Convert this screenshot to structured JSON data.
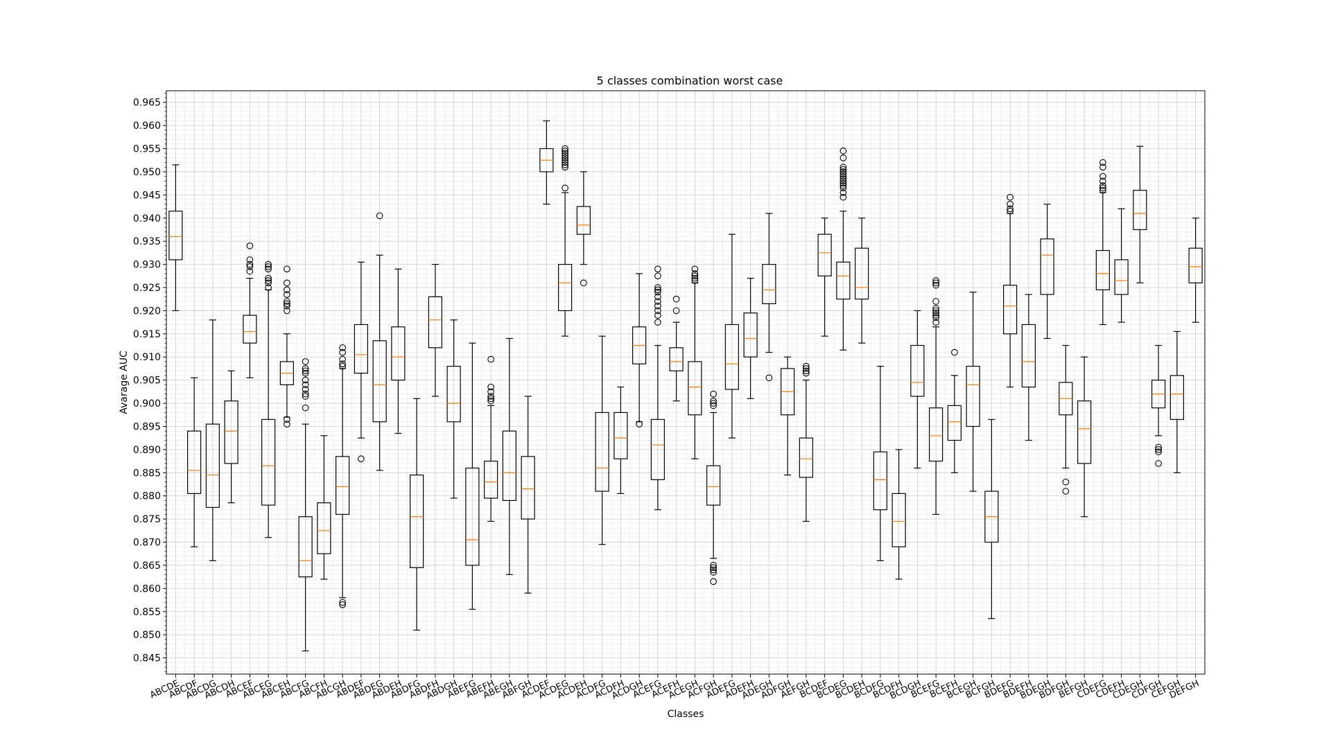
{
  "chart_data": {
    "type": "boxplot",
    "title": "5 classes combination worst case",
    "xlabel": "Classes",
    "ylabel": "Avarage AUC",
    "ylim": [
      0.8415,
      0.9675
    ],
    "yticks": [
      0.845,
      0.85,
      0.855,
      0.86,
      0.865,
      0.87,
      0.875,
      0.88,
      0.885,
      0.89,
      0.895,
      0.9,
      0.905,
      0.91,
      0.915,
      0.92,
      0.925,
      0.93,
      0.935,
      0.94,
      0.945,
      0.95,
      0.955,
      0.96,
      0.965
    ],
    "ytick_labels": [
      "0.845",
      "0.850",
      "0.855",
      "0.860",
      "0.865",
      "0.870",
      "0.875",
      "0.880",
      "0.885",
      "0.890",
      "0.895",
      "0.900",
      "0.905",
      "0.910",
      "0.915",
      "0.920",
      "0.925",
      "0.930",
      "0.935",
      "0.940",
      "0.945",
      "0.950",
      "0.955",
      "0.960",
      "0.965"
    ],
    "grid": true,
    "minor_grid": true,
    "box_color": "#000000",
    "median_color": "#ff7f0e",
    "categories": [
      "ABCDE",
      "ABCDF",
      "ABCDG",
      "ABCDH",
      "ABCEF",
      "ABCEG",
      "ABCEH",
      "ABCFG",
      "ABCFH",
      "ABCGH",
      "ABDEF",
      "ABDEG",
      "ABDEH",
      "ABDFG",
      "ABDFH",
      "ABDGH",
      "ABEFG",
      "ABEFH",
      "ABEGH",
      "ABFGH",
      "ACDEF",
      "ACDEG",
      "ACDEH",
      "ACDFG",
      "ACDFH",
      "ACDGH",
      "ACEFG",
      "ACEFH",
      "ACEGH",
      "ACFGH",
      "ADEFG",
      "ADEFH",
      "ADEGH",
      "ADFGH",
      "AEFGH",
      "BCDEF",
      "BCDEG",
      "BCDEH",
      "BCDFG",
      "BCDFH",
      "BCDGH",
      "BCEFG",
      "BCEFH",
      "BCEGH",
      "BCFGH",
      "BDEFG",
      "BDEFH",
      "BDEGH",
      "BDFGH",
      "BEFGH",
      "CDEFG",
      "CDEFH",
      "CDEGH",
      "CDFGH",
      "CEFGH",
      "DEFGH"
    ],
    "boxes": [
      {
        "wl": 0.92,
        "q1": 0.931,
        "med": 0.936,
        "q3": 0.9415,
        "wh": 0.9515,
        "fliers": []
      },
      {
        "wl": 0.869,
        "q1": 0.8805,
        "med": 0.8855,
        "q3": 0.894,
        "wh": 0.9055,
        "fliers": []
      },
      {
        "wl": 0.866,
        "q1": 0.8775,
        "med": 0.8845,
        "q3": 0.8955,
        "wh": 0.918,
        "fliers": []
      },
      {
        "wl": 0.8785,
        "q1": 0.887,
        "med": 0.894,
        "q3": 0.9005,
        "wh": 0.907,
        "fliers": []
      },
      {
        "wl": 0.9055,
        "q1": 0.913,
        "med": 0.9155,
        "q3": 0.919,
        "wh": 0.927,
        "fliers": [
          0.9285,
          0.9295,
          0.93,
          0.931,
          0.934
        ]
      },
      {
        "wl": 0.871,
        "q1": 0.878,
        "med": 0.8865,
        "q3": 0.8965,
        "wh": 0.9245,
        "fliers": [
          0.925,
          0.926,
          0.9265,
          0.927,
          0.929,
          0.9295,
          0.93
        ]
      },
      {
        "wl": 0.897,
        "q1": 0.904,
        "med": 0.9065,
        "q3": 0.909,
        "wh": 0.915,
        "fliers": [
          0.8955,
          0.8965,
          0.92,
          0.921,
          0.9215,
          0.922,
          0.9235,
          0.9245,
          0.926,
          0.929
        ]
      },
      {
        "wl": 0.8465,
        "q1": 0.8625,
        "med": 0.866,
        "q3": 0.8755,
        "wh": 0.8955,
        "fliers": [
          0.899,
          0.9015,
          0.902,
          0.903,
          0.904,
          0.905,
          0.9065,
          0.907,
          0.9075,
          0.909
        ]
      },
      {
        "wl": 0.862,
        "q1": 0.8675,
        "med": 0.8725,
        "q3": 0.8785,
        "wh": 0.893,
        "fliers": []
      },
      {
        "wl": 0.858,
        "q1": 0.876,
        "med": 0.882,
        "q3": 0.8885,
        "wh": 0.9075,
        "fliers": [
          0.8565,
          0.857,
          0.908,
          0.9085,
          0.9095,
          0.911,
          0.912
        ]
      },
      {
        "wl": 0.8925,
        "q1": 0.9065,
        "med": 0.9105,
        "q3": 0.917,
        "wh": 0.9305,
        "fliers": [
          0.888
        ]
      },
      {
        "wl": 0.8855,
        "q1": 0.896,
        "med": 0.904,
        "q3": 0.9135,
        "wh": 0.932,
        "fliers": [
          0.9405
        ]
      },
      {
        "wl": 0.8935,
        "q1": 0.905,
        "med": 0.91,
        "q3": 0.9165,
        "wh": 0.929,
        "fliers": []
      },
      {
        "wl": 0.851,
        "q1": 0.8645,
        "med": 0.8755,
        "q3": 0.8845,
        "wh": 0.901,
        "fliers": []
      },
      {
        "wl": 0.9015,
        "q1": 0.912,
        "med": 0.918,
        "q3": 0.923,
        "wh": 0.93,
        "fliers": []
      },
      {
        "wl": 0.8795,
        "q1": 0.896,
        "med": 0.9,
        "q3": 0.908,
        "wh": 0.918,
        "fliers": []
      },
      {
        "wl": 0.8555,
        "q1": 0.865,
        "med": 0.8705,
        "q3": 0.886,
        "wh": 0.913,
        "fliers": []
      },
      {
        "wl": 0.8745,
        "q1": 0.8795,
        "med": 0.883,
        "q3": 0.8875,
        "wh": 0.8995,
        "fliers": [
          0.9005,
          0.901,
          0.9015,
          0.9025,
          0.9035,
          0.9095
        ]
      },
      {
        "wl": 0.863,
        "q1": 0.879,
        "med": 0.885,
        "q3": 0.894,
        "wh": 0.914,
        "fliers": []
      },
      {
        "wl": 0.859,
        "q1": 0.875,
        "med": 0.8815,
        "q3": 0.8885,
        "wh": 0.9015,
        "fliers": []
      },
      {
        "wl": 0.943,
        "q1": 0.95,
        "med": 0.9525,
        "q3": 0.955,
        "wh": 0.961,
        "fliers": []
      },
      {
        "wl": 0.9145,
        "q1": 0.92,
        "med": 0.926,
        "q3": 0.93,
        "wh": 0.9455,
        "fliers": [
          0.9465,
          0.951,
          0.9515,
          0.952,
          0.9525,
          0.953,
          0.9535,
          0.954,
          0.9545,
          0.955
        ]
      },
      {
        "wl": 0.93,
        "q1": 0.9365,
        "med": 0.9385,
        "q3": 0.9425,
        "wh": 0.95,
        "fliers": [
          0.926
        ]
      },
      {
        "wl": 0.8695,
        "q1": 0.881,
        "med": 0.886,
        "q3": 0.898,
        "wh": 0.9145,
        "fliers": []
      },
      {
        "wl": 0.8805,
        "q1": 0.888,
        "med": 0.8925,
        "q3": 0.898,
        "wh": 0.9035,
        "fliers": []
      },
      {
        "wl": 0.896,
        "q1": 0.9085,
        "med": 0.9125,
        "q3": 0.9165,
        "wh": 0.928,
        "fliers": [
          0.8955
        ]
      },
      {
        "wl": 0.877,
        "q1": 0.8835,
        "med": 0.891,
        "q3": 0.8965,
        "wh": 0.9125,
        "fliers": [
          0.9175,
          0.919,
          0.92,
          0.921,
          0.922,
          0.923,
          0.924,
          0.9245,
          0.925,
          0.9275,
          0.929
        ]
      },
      {
        "wl": 0.9005,
        "q1": 0.907,
        "med": 0.909,
        "q3": 0.912,
        "wh": 0.9175,
        "fliers": [
          0.92,
          0.9225
        ]
      },
      {
        "wl": 0.888,
        "q1": 0.8975,
        "med": 0.9035,
        "q3": 0.909,
        "wh": 0.926,
        "fliers": [
          0.9265,
          0.927,
          0.9275,
          0.928,
          0.929
        ]
      },
      {
        "wl": 0.8665,
        "q1": 0.878,
        "med": 0.882,
        "q3": 0.8865,
        "wh": 0.898,
        "fliers": [
          0.8615,
          0.8635,
          0.864,
          0.8645,
          0.865,
          0.8995,
          0.9,
          0.9005,
          0.902
        ]
      },
      {
        "wl": 0.8925,
        "q1": 0.903,
        "med": 0.9085,
        "q3": 0.917,
        "wh": 0.9365,
        "fliers": []
      },
      {
        "wl": 0.901,
        "q1": 0.91,
        "med": 0.914,
        "q3": 0.9195,
        "wh": 0.927,
        "fliers": []
      },
      {
        "wl": 0.911,
        "q1": 0.9215,
        "med": 0.9245,
        "q3": 0.93,
        "wh": 0.941,
        "fliers": [
          0.9055
        ]
      },
      {
        "wl": 0.8845,
        "q1": 0.8975,
        "med": 0.9025,
        "q3": 0.9075,
        "wh": 0.91,
        "fliers": []
      },
      {
        "wl": 0.8745,
        "q1": 0.884,
        "med": 0.888,
        "q3": 0.8925,
        "wh": 0.905,
        "fliers": [
          0.9065,
          0.907,
          0.9075,
          0.908
        ]
      },
      {
        "wl": 0.9145,
        "q1": 0.9275,
        "med": 0.9325,
        "q3": 0.9365,
        "wh": 0.94,
        "fliers": []
      },
      {
        "wl": 0.9115,
        "q1": 0.9225,
        "med": 0.9275,
        "q3": 0.9305,
        "wh": 0.9415,
        "fliers": [
          0.9445,
          0.9455,
          0.9465,
          0.947,
          0.9475,
          0.948,
          0.9485,
          0.949,
          0.9495,
          0.95,
          0.9505,
          0.951,
          0.953,
          0.9545
        ]
      },
      {
        "wl": 0.913,
        "q1": 0.9225,
        "med": 0.925,
        "q3": 0.9335,
        "wh": 0.94,
        "fliers": []
      },
      {
        "wl": 0.866,
        "q1": 0.877,
        "med": 0.8835,
        "q3": 0.8895,
        "wh": 0.908,
        "fliers": []
      },
      {
        "wl": 0.862,
        "q1": 0.869,
        "med": 0.8745,
        "q3": 0.8805,
        "wh": 0.89,
        "fliers": []
      },
      {
        "wl": 0.886,
        "q1": 0.9015,
        "med": 0.9045,
        "q3": 0.9125,
        "wh": 0.92,
        "fliers": []
      },
      {
        "wl": 0.876,
        "q1": 0.8875,
        "med": 0.893,
        "q3": 0.899,
        "wh": 0.9165,
        "fliers": [
          0.9175,
          0.9185,
          0.919,
          0.9195,
          0.92,
          0.9205,
          0.922,
          0.9255,
          0.926,
          0.9265
        ]
      },
      {
        "wl": 0.885,
        "q1": 0.892,
        "med": 0.896,
        "q3": 0.8995,
        "wh": 0.906,
        "fliers": [
          0.911
        ]
      },
      {
        "wl": 0.881,
        "q1": 0.895,
        "med": 0.904,
        "q3": 0.908,
        "wh": 0.924,
        "fliers": []
      },
      {
        "wl": 0.8535,
        "q1": 0.87,
        "med": 0.8755,
        "q3": 0.881,
        "wh": 0.8965,
        "fliers": []
      },
      {
        "wl": 0.9035,
        "q1": 0.915,
        "med": 0.921,
        "q3": 0.9255,
        "wh": 0.941,
        "fliers": [
          0.9415,
          0.942,
          0.943,
          0.9445
        ]
      },
      {
        "wl": 0.892,
        "q1": 0.9035,
        "med": 0.909,
        "q3": 0.917,
        "wh": 0.9235,
        "fliers": []
      },
      {
        "wl": 0.914,
        "q1": 0.9235,
        "med": 0.932,
        "q3": 0.9355,
        "wh": 0.943,
        "fliers": []
      },
      {
        "wl": 0.886,
        "q1": 0.8975,
        "med": 0.901,
        "q3": 0.9045,
        "wh": 0.9125,
        "fliers": [
          0.881,
          0.883
        ]
      },
      {
        "wl": 0.8755,
        "q1": 0.887,
        "med": 0.8945,
        "q3": 0.9005,
        "wh": 0.91,
        "fliers": []
      },
      {
        "wl": 0.917,
        "q1": 0.9245,
        "med": 0.928,
        "q3": 0.933,
        "wh": 0.9455,
        "fliers": [
          0.946,
          0.9465,
          0.947,
          0.948,
          0.949,
          0.951,
          0.952
        ]
      },
      {
        "wl": 0.9175,
        "q1": 0.9235,
        "med": 0.9265,
        "q3": 0.931,
        "wh": 0.942,
        "fliers": []
      },
      {
        "wl": 0.926,
        "q1": 0.9375,
        "med": 0.941,
        "q3": 0.946,
        "wh": 0.9555,
        "fliers": []
      },
      {
        "wl": 0.893,
        "q1": 0.899,
        "med": 0.902,
        "q3": 0.905,
        "wh": 0.9125,
        "fliers": [
          0.887,
          0.8895,
          0.89,
          0.8905
        ]
      },
      {
        "wl": 0.885,
        "q1": 0.8965,
        "med": 0.902,
        "q3": 0.906,
        "wh": 0.9155,
        "fliers": []
      },
      {
        "wl": 0.9175,
        "q1": 0.926,
        "med": 0.9295,
        "q3": 0.9335,
        "wh": 0.94,
        "fliers": []
      }
    ]
  }
}
